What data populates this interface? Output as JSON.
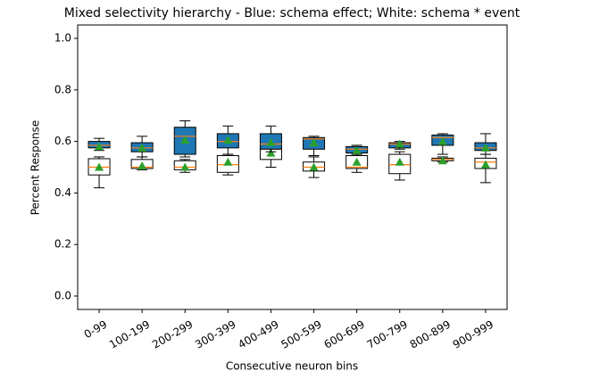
{
  "chart_data": {
    "type": "box",
    "title": "Mixed selectivity hierarchy - Blue: schema effect; White: schema * event",
    "x_label": "Consecutive neuron bins",
    "y_label": "Percent Response",
    "categories": [
      "0-99",
      "100-199",
      "200-299",
      "300-399",
      "400-499",
      "500-599",
      "600-699",
      "700-799",
      "800-899",
      "900-999"
    ],
    "ylim": [
      -0.052,
      1.052
    ],
    "yticks": [
      {
        "value": 0,
        "label": "0.0"
      },
      0.2,
      0.4,
      0.6,
      0.8,
      {
        "value": 1,
        "label": "1.0"
      }
    ],
    "median_color": "#ff7f0e",
    "mean_color": "#2ca02c",
    "series": [
      {
        "color": "#ffffff",
        "whisker_low": [
          0.42,
          0.49,
          0.48,
          0.47,
          0.5,
          0.46,
          0.48,
          0.45,
          0.52,
          0.44
        ],
        "q1": [
          0.47,
          0.495,
          0.49,
          0.48,
          0.53,
          0.485,
          0.495,
          0.475,
          0.525,
          0.495
        ],
        "median": [
          0.5,
          0.5,
          0.5,
          0.51,
          0.57,
          0.5,
          0.5,
          0.51,
          0.53,
          0.52
        ],
        "q3": [
          0.533,
          0.53,
          0.525,
          0.545,
          0.58,
          0.52,
          0.545,
          0.55,
          0.535,
          0.535
        ],
        "whisker_high": [
          0.54,
          0.54,
          0.53,
          0.55,
          0.58,
          0.54,
          0.55,
          0.56,
          0.54,
          0.55
        ],
        "mean": [
          0.5,
          0.505,
          0.5,
          0.52,
          0.555,
          0.5,
          0.52,
          0.52,
          0.525,
          0.51
        ]
      },
      {
        "color": "#1f77b4",
        "whisker_low": [
          0.565,
          0.54,
          0.54,
          0.55,
          0.56,
          0.545,
          0.55,
          0.57,
          0.55,
          0.55
        ],
        "q1": [
          0.575,
          0.56,
          0.55,
          0.575,
          0.57,
          0.57,
          0.555,
          0.575,
          0.585,
          0.565
        ],
        "median": [
          0.585,
          0.575,
          0.62,
          0.6,
          0.59,
          0.61,
          0.57,
          0.59,
          0.615,
          0.575
        ],
        "q3": [
          0.6,
          0.595,
          0.655,
          0.63,
          0.63,
          0.615,
          0.58,
          0.595,
          0.625,
          0.595
        ],
        "whisker_high": [
          0.612,
          0.62,
          0.68,
          0.66,
          0.66,
          0.62,
          0.585,
          0.6,
          0.63,
          0.63
        ],
        "mean": [
          0.58,
          0.575,
          0.605,
          0.605,
          0.595,
          0.595,
          0.565,
          0.59,
          0.6,
          0.575
        ]
      }
    ]
  }
}
